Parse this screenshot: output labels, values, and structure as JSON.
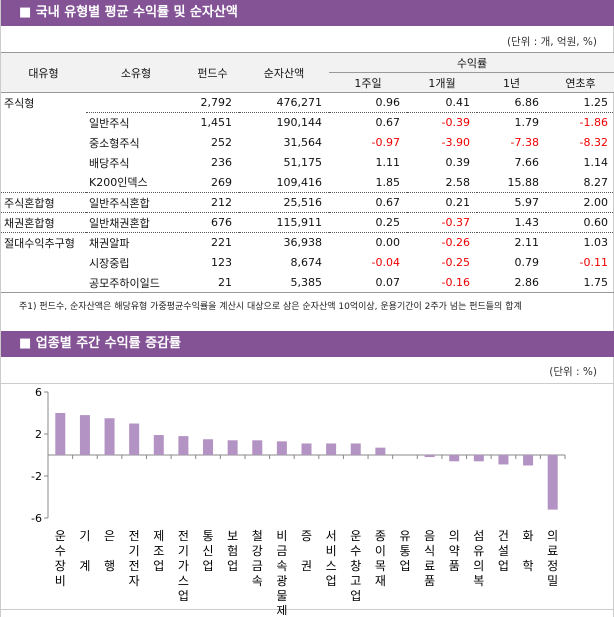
{
  "section1": {
    "title": "■ 국내 유형별 평균 수익률 및 순자산액",
    "unit": "(단위 : 개, 억원, %)",
    "headers": {
      "major": "대유형",
      "minor": "소유형",
      "funds": "펀드수",
      "assets": "순자산액",
      "returns": "수익률",
      "w1": "1주일",
      "m1": "1개월",
      "y1": "1년",
      "ytd": "연초후"
    },
    "rows": [
      {
        "major": "주식형",
        "minor": "",
        "funds": "2,792",
        "assets": "476,271",
        "w1": "0.96",
        "m1": "0.41",
        "y1": "6.86",
        "ytd": "1.25"
      },
      {
        "major": "",
        "minor": "일반주식",
        "funds": "1,451",
        "assets": "190,144",
        "w1": "0.67",
        "m1": "-0.39",
        "y1": "1.79",
        "ytd": "-1.86"
      },
      {
        "major": "",
        "minor": "중소형주식",
        "funds": "252",
        "assets": "31,564",
        "w1": "-0.97",
        "m1": "-3.90",
        "y1": "-7.38",
        "ytd": "-8.32"
      },
      {
        "major": "",
        "minor": "배당주식",
        "funds": "236",
        "assets": "51,175",
        "w1": "1.11",
        "m1": "0.39",
        "y1": "7.66",
        "ytd": "1.14"
      },
      {
        "major": "",
        "minor": "K200인덱스",
        "funds": "269",
        "assets": "109,416",
        "w1": "1.85",
        "m1": "2.58",
        "y1": "15.88",
        "ytd": "8.27"
      },
      {
        "major": "주식혼합형",
        "minor": "일반주식혼합",
        "funds": "212",
        "assets": "25,516",
        "w1": "0.67",
        "m1": "0.21",
        "y1": "5.97",
        "ytd": "2.00"
      },
      {
        "major": "채권혼합형",
        "minor": "일반채권혼합",
        "funds": "676",
        "assets": "115,911",
        "w1": "0.25",
        "m1": "-0.37",
        "y1": "1.43",
        "ytd": "0.60"
      },
      {
        "major": "절대수익추구형",
        "minor": "채권알파",
        "funds": "221",
        "assets": "36,938",
        "w1": "0.00",
        "m1": "-0.26",
        "y1": "2.11",
        "ytd": "1.03"
      },
      {
        "major": "",
        "minor": "시장중립",
        "funds": "123",
        "assets": "8,674",
        "w1": "-0.04",
        "m1": "-0.25",
        "y1": "0.79",
        "ytd": "-0.11"
      },
      {
        "major": "",
        "minor": "공모주하이일드",
        "funds": "21",
        "assets": "5,385",
        "w1": "0.07",
        "m1": "-0.16",
        "y1": "2.86",
        "ytd": "1.75"
      }
    ],
    "note": "주1) 펀드수, 순자산액은 해당유형 가중평균수익률을 계산시 대상으로 삼은 순자산액 10억이상, 운용기간이 2주가 넘는 펀드들의 합계",
    "negative_color": "#ee0000"
  },
  "section2": {
    "title": "■ 업종별 주간 수익률 증감률",
    "unit": "(단위 : %)"
  },
  "colors": {
    "header_bar": "#845396",
    "bar": "#b393c3"
  },
  "chart_data": {
    "type": "bar",
    "ylim": [
      -6,
      6
    ],
    "yticks": [
      "6",
      "2",
      "-2",
      "-6"
    ],
    "grid": false,
    "categories": [
      "운수장비",
      "기 계",
      "은 행",
      "전기전자",
      "제조업",
      "전기가스업",
      "통신업",
      "보험업",
      "철강금속",
      "비금속광물제품",
      "증 권",
      "서비스업",
      "운수창고업",
      "종이목재",
      "유통업",
      "음식료품",
      "의약품",
      "섬유의복",
      "건설업",
      "화 학",
      "의료정밀"
    ],
    "values": [
      4.0,
      3.8,
      3.5,
      3.0,
      1.9,
      1.8,
      1.5,
      1.4,
      1.4,
      1.3,
      1.1,
      1.1,
      1.1,
      0.7,
      0.0,
      -0.2,
      -0.6,
      -0.6,
      -0.9,
      -1.0,
      -5.2
    ]
  }
}
